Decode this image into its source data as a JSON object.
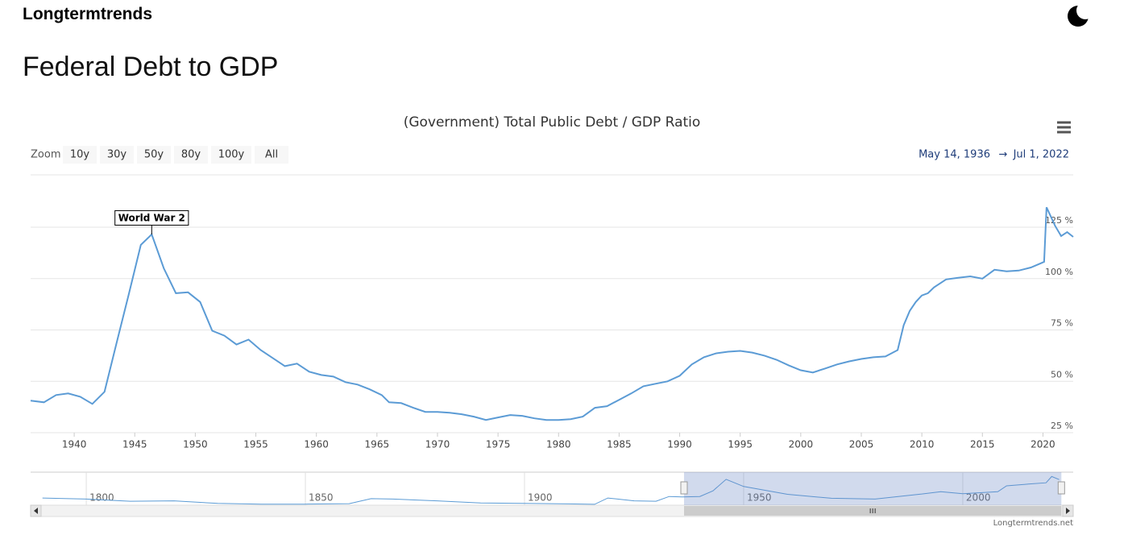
{
  "header": {
    "brand": "Longtermtrends",
    "title": "Federal Debt to GDP"
  },
  "range_selector": {
    "zoom_label": "Zoom",
    "buttons": [
      "10y",
      "30y",
      "50y",
      "80y",
      "100y",
      "All"
    ],
    "from": "May 14, 1936",
    "arrow": "→",
    "to": "Jul 1, 2022"
  },
  "credit": "Longtermtrends.net",
  "chart_data": [
    {
      "type": "line",
      "title": "(Government) Total Public Debt / GDP Ratio",
      "color": "#5b9bd5",
      "x": [
        1936.4,
        1937.5,
        1938.5,
        1939.5,
        1940.5,
        1941.5,
        1942.5,
        1943.5,
        1944.5,
        1945.5,
        1946.4,
        1947.4,
        1948.4,
        1949.4,
        1950.4,
        1951.4,
        1952.4,
        1953.4,
        1954.4,
        1955.4,
        1956.4,
        1957.4,
        1958.4,
        1959.4,
        1960.4,
        1961.4,
        1962.4,
        1963.4,
        1964.4,
        1965.4,
        1966,
        1967,
        1968,
        1969,
        1970,
        1971,
        1972,
        1973,
        1974,
        1975,
        1976,
        1977,
        1978,
        1979,
        1980,
        1981,
        1982,
        1983,
        1984,
        1985,
        1986,
        1987,
        1988,
        1989,
        1990,
        1991,
        1992,
        1993,
        1994,
        1995,
        1996,
        1997,
        1998,
        1999,
        2000,
        2001,
        2002,
        2003,
        2004,
        2005,
        2006,
        2007,
        2008,
        2008.5,
        2009,
        2009.5,
        2010,
        2010.5,
        2011,
        2012,
        2013,
        2014,
        2015,
        2016,
        2017,
        2018,
        2019,
        2019.8,
        2020.1,
        2020.3,
        2021,
        2021.5,
        2022,
        2022.5
      ],
      "values": [
        40.6,
        39.8,
        43.3,
        44.1,
        42.5,
        39,
        44.9,
        68.7,
        92.2,
        116.4,
        121.5,
        105,
        92.9,
        93.3,
        88.6,
        74.6,
        72.2,
        67.9,
        70.3,
        65.2,
        61.3,
        57.4,
        58.6,
        54.7,
        53.1,
        52.3,
        49.6,
        48.4,
        46.1,
        43.3,
        39.8,
        39.4,
        37.1,
        35.1,
        35.1,
        34.7,
        34,
        32.8,
        31.2,
        32.4,
        33.6,
        33.2,
        32,
        31.2,
        31.2,
        31.6,
        32.8,
        37.1,
        37.9,
        41,
        44.1,
        47.6,
        48.8,
        50,
        52.7,
        58.2,
        61.7,
        63.6,
        64.4,
        64.8,
        64,
        62.5,
        60.5,
        57.8,
        55.4,
        54.3,
        56.2,
        58.2,
        59.7,
        60.9,
        61.7,
        62.1,
        65.2,
        77.3,
        84.3,
        88.6,
        91.8,
        92.9,
        95.7,
        99.6,
        100.4,
        101.1,
        100,
        104.3,
        103.5,
        103.9,
        105.4,
        107.4,
        108.2,
        134.7,
        125.7,
        120.7,
        122.6,
        120.3
      ],
      "xlim": [
        1936.4,
        2022.5
      ],
      "xticks": [
        1940,
        1945,
        1950,
        1955,
        1960,
        1965,
        1970,
        1975,
        1980,
        1985,
        1990,
        1995,
        2000,
        2005,
        2010,
        2015,
        2020
      ],
      "ylim": [
        25,
        150.5
      ],
      "yticks": [
        {
          "value": 25,
          "label": "25 %"
        },
        {
          "value": 50,
          "label": "50 %"
        },
        {
          "value": 75,
          "label": "75 %"
        },
        {
          "value": 100,
          "label": "100 %"
        },
        {
          "value": 125,
          "label": "125 %"
        }
      ],
      "grid": true,
      "annotations": [
        {
          "label": "World War 2",
          "x": 1946.4
        }
      ]
    },
    {
      "type": "line",
      "color": "#5b9bd5",
      "x": [
        1790,
        1800,
        1810,
        1820,
        1830,
        1840,
        1850,
        1860,
        1865,
        1870,
        1880,
        1890,
        1900,
        1910,
        1916,
        1919,
        1925,
        1930,
        1933,
        1936,
        1940,
        1943,
        1946,
        1950,
        1960,
        1970,
        1980,
        1990,
        1995,
        2000,
        2008,
        2010,
        2015,
        2019,
        2020.3,
        2022
      ],
      "values": [
        33,
        28,
        18,
        20,
        8,
        5,
        5,
        7,
        30,
        28,
        20,
        10,
        8,
        6,
        4,
        33,
        20,
        18,
        40,
        38,
        40,
        66,
        119,
        86,
        50,
        32,
        28,
        50,
        62,
        53,
        62,
        89,
        97,
        103,
        132,
        118
      ],
      "xlim": [
        1787.3,
        2025.2
      ],
      "xticks": [
        1800,
        1850,
        1900,
        1950,
        2000
      ],
      "ylim": [
        0,
        152
      ],
      "grid": true
    }
  ]
}
